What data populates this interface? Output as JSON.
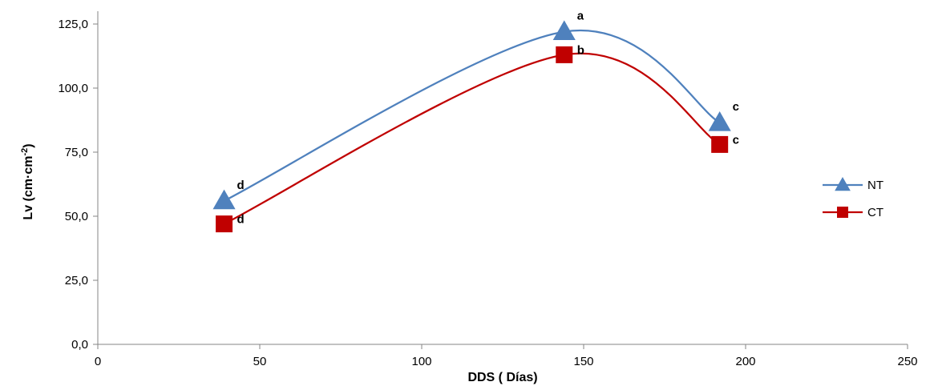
{
  "chart_data": {
    "type": "line",
    "xlabel": "DDS ( Días)",
    "ylabel_main": "Lv (cm·cm",
    "ylabel_sup": "-2",
    "ylabel_end": ")",
    "xlim": [
      0,
      250
    ],
    "ylim": [
      0,
      125
    ],
    "x_ticks": [
      0,
      50,
      100,
      150,
      200,
      250
    ],
    "x_tick_labels": [
      "0",
      "50",
      "100",
      "150",
      "200",
      "250"
    ],
    "y_ticks": [
      0,
      25,
      50,
      75,
      100,
      125
    ],
    "y_tick_labels": [
      "0,0",
      "25,0",
      "50,0",
      "75,0",
      "100,0",
      "125,0"
    ],
    "grid": false,
    "legend_position": "right",
    "series": [
      {
        "name": "NT",
        "color": "#4F81BD",
        "marker": "triangle",
        "x": [
          39,
          144,
          192
        ],
        "y": [
          56,
          122,
          86.5
        ],
        "labels": [
          "d",
          "a",
          "c"
        ]
      },
      {
        "name": "CT",
        "color": "#C00000",
        "marker": "square",
        "x": [
          39,
          144,
          192
        ],
        "y": [
          47,
          113,
          78
        ],
        "labels": [
          "d",
          "b",
          "c"
        ]
      }
    ]
  }
}
